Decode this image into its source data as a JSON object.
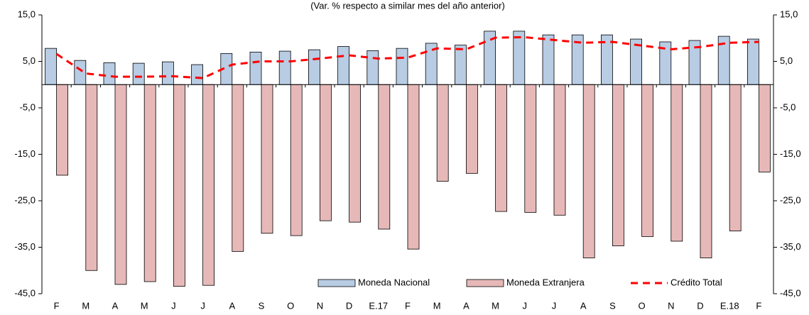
{
  "chart_data": {
    "type": "bar",
    "subtitle": "(Var. % respecto a similar mes del año anterior)",
    "categories": [
      "F",
      "M",
      "A",
      "M",
      "J",
      "J",
      "A",
      "S",
      "O",
      "N",
      "D",
      "E.17",
      "F",
      "M",
      "A",
      "M",
      "J",
      "J",
      "A",
      "S",
      "O",
      "N",
      "D",
      "E.18",
      "F"
    ],
    "series": [
      {
        "name": "Moneda Nacional",
        "color": "#b8cce4",
        "type": "bar",
        "values": [
          7.8,
          5.2,
          4.7,
          4.6,
          4.9,
          4.3,
          6.7,
          7.0,
          7.2,
          7.5,
          8.2,
          7.3,
          7.8,
          8.9,
          8.5,
          11.5,
          11.5,
          10.7,
          10.7,
          10.7,
          9.8,
          9.2,
          9.5,
          10.4,
          9.8
        ]
      },
      {
        "name": "Moneda Extranjera",
        "color": "#e6b9b8",
        "type": "bar",
        "values": [
          -19.5,
          -40.0,
          -43.0,
          -42.4,
          -43.4,
          -43.2,
          -35.9,
          -32.0,
          -32.5,
          -29.3,
          -29.6,
          -31.1,
          -35.4,
          -20.8,
          -19.1,
          -27.3,
          -27.5,
          -28.1,
          -37.3,
          -34.7,
          -32.7,
          -33.7,
          -37.3,
          -31.5,
          -18.8
        ]
      },
      {
        "name": "Crédito Total",
        "color": "#ff0000",
        "type": "line",
        "values": [
          6.6,
          2.4,
          1.7,
          1.7,
          1.8,
          1.4,
          4.3,
          5.0,
          5.0,
          5.6,
          6.3,
          5.6,
          5.8,
          7.8,
          7.6,
          10.1,
          10.2,
          9.6,
          9.0,
          9.2,
          8.4,
          7.6,
          8.1,
          9.0,
          9.2
        ]
      }
    ],
    "ylim": [
      -45,
      15
    ],
    "yticks": [
      {
        "value": 15,
        "label": "15,0"
      },
      {
        "value": 5,
        "label": "5,0"
      },
      {
        "value": -5,
        "label": "-5,0"
      },
      {
        "value": -15,
        "label": "-15,0"
      },
      {
        "value": -25,
        "label": "-25,0"
      },
      {
        "value": -35,
        "label": "-35,0"
      },
      {
        "value": -45,
        "label": "-45,0"
      }
    ],
    "y2lim": [
      -45,
      15
    ],
    "y2ticks": [
      {
        "value": 15,
        "label": "15,0"
      },
      {
        "value": 5,
        "label": "5,0"
      },
      {
        "value": -5,
        "label": "-5,0"
      },
      {
        "value": -15,
        "label": "-15,0"
      },
      {
        "value": -25,
        "label": "-25,0"
      },
      {
        "value": -35,
        "label": "-35,0"
      },
      {
        "value": -45,
        "label": "-45,0"
      }
    ],
    "legend": "bottom-right"
  }
}
